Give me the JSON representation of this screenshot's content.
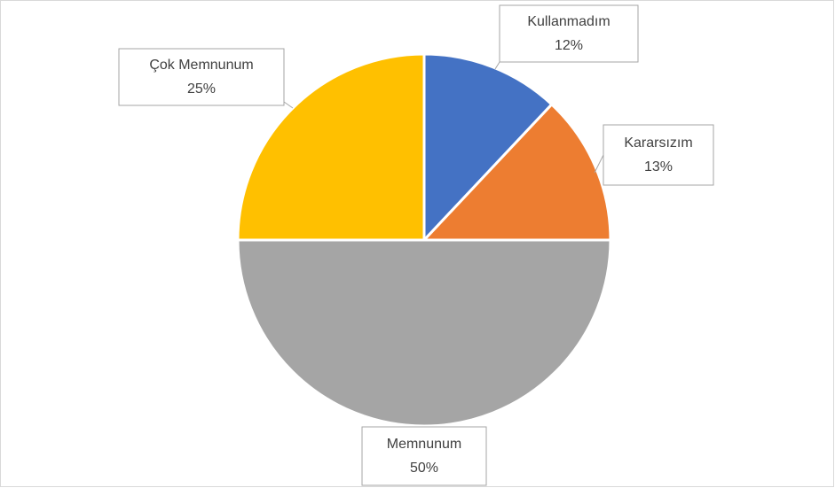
{
  "chart_data": {
    "type": "pie",
    "categories": [
      "Kullanmadım",
      "Kararsızım",
      "Memnunum",
      "Çok Memnunum"
    ],
    "values": [
      12,
      13,
      50,
      25
    ],
    "value_labels": [
      "12%",
      "13%",
      "50%",
      "25%"
    ],
    "colors": [
      "#4472c4",
      "#ed7d31",
      "#a5a5a5",
      "#ffc000"
    ]
  }
}
